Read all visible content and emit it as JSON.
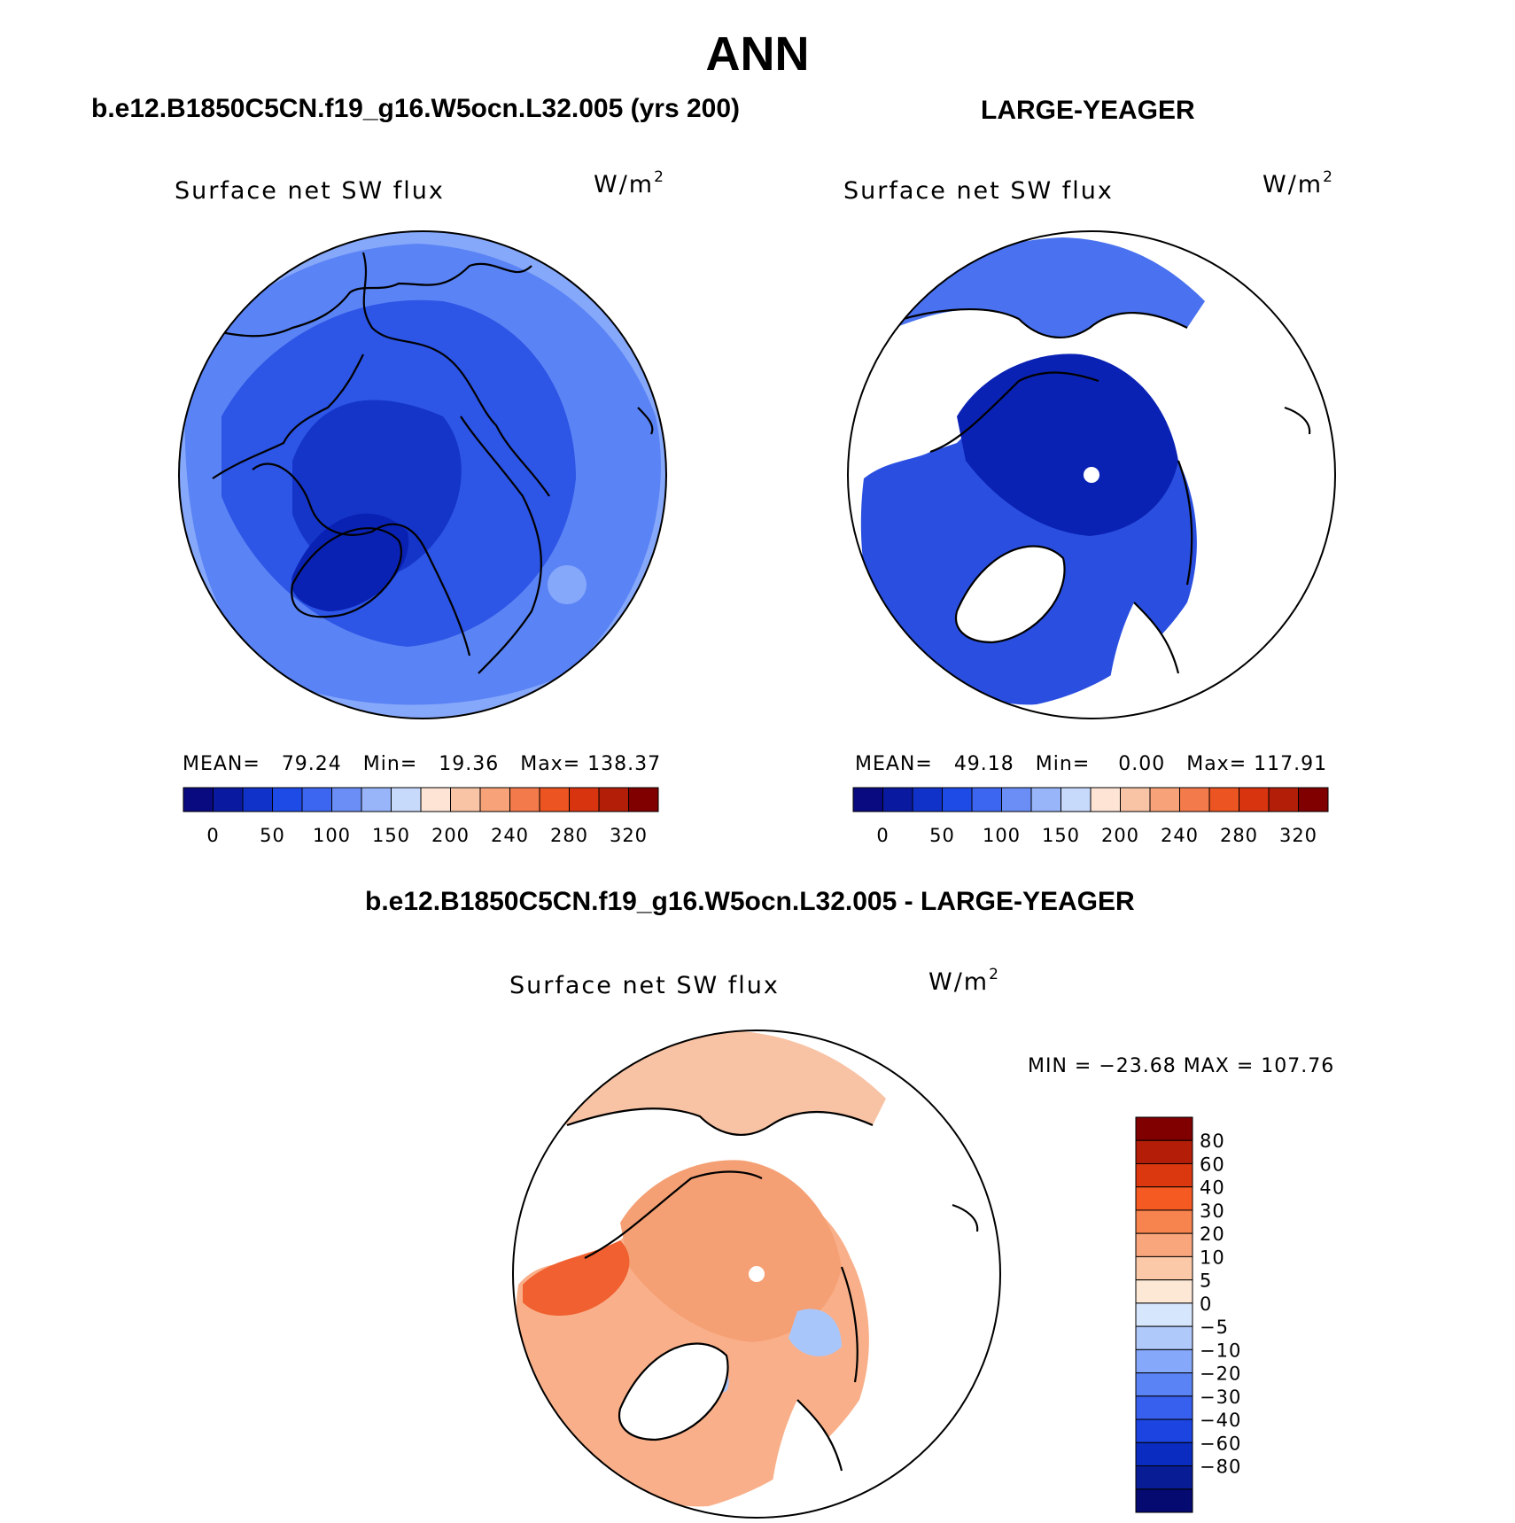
{
  "title": "ANN",
  "panels": [
    {
      "case_label": "b.e12.B1850C5CN.f19_g16.W5ocn.L32.005 (yrs 200)",
      "variable": "Surface net SW flux",
      "units": "W/m",
      "units_sup": "2",
      "mean_label": "MEAN=",
      "mean": "79.24",
      "min_label": "Min=",
      "min": "19.36",
      "max_label": "Max=",
      "max": "138.37",
      "colors": {
        "pole": "#1535c9",
        "mid": "#2d55e6",
        "outer": "#5a83f5",
        "rim": "#86a8fa"
      }
    },
    {
      "case_label": "LARGE-YEAGER",
      "variable": "Surface net SW flux",
      "units": "W/m",
      "units_sup": "2",
      "mean_label": "MEAN=",
      "mean": "49.18",
      "min_label": "Min=",
      "min": "0.00",
      "max_label": "Max=",
      "max": "117.91",
      "colors": {
        "pole": "#0a22b4",
        "mid": "#2a4fe0",
        "outer": "#4a72f0",
        "land": "#ffffff"
      }
    }
  ],
  "diff_panel": {
    "case_label": "b.e12.B1850C5CN.f19_g16.W5ocn.L32.005 - LARGE-YEAGER",
    "variable": "Surface net SW flux",
    "units": "W/m",
    "units_sup": "2",
    "minmax_text": "MIN = −23.68 MAX = 107.76",
    "colors": {
      "pole": "#f5a074",
      "warm": "#f06030",
      "light": "#f8c3a4",
      "cool": "#a9c6fb",
      "land": "#ffffff"
    }
  },
  "colorbar_main": {
    "colors": [
      "#0a0a80",
      "#0a1aa0",
      "#1032c8",
      "#1e4ae6",
      "#3c66f0",
      "#6a8ef5",
      "#98b5fa",
      "#c8dafc",
      "#fde4d4",
      "#f9c3a6",
      "#f7a279",
      "#f37a4a",
      "#ec5522",
      "#d83410",
      "#b21e08",
      "#800000"
    ],
    "labels": [
      "0",
      "50",
      "100",
      "150",
      "200",
      "240",
      "280",
      "320"
    ]
  },
  "colorbar_diff": {
    "colors": [
      "#800000",
      "#b41e08",
      "#dc3810",
      "#f55a22",
      "#f7834e",
      "#f9a67c",
      "#fbc8a8",
      "#fde8d6",
      "#d6e6fd",
      "#b0c9fb",
      "#86a8fa",
      "#5a83f5",
      "#3860ee",
      "#1c44e0",
      "#0a2cc0",
      "#081c96",
      "#050a70"
    ],
    "labels": [
      "80",
      "60",
      "40",
      "30",
      "20",
      "10",
      "5",
      "0",
      "−5",
      "−10",
      "−20",
      "−30",
      "−40",
      "−60",
      "−80"
    ]
  }
}
